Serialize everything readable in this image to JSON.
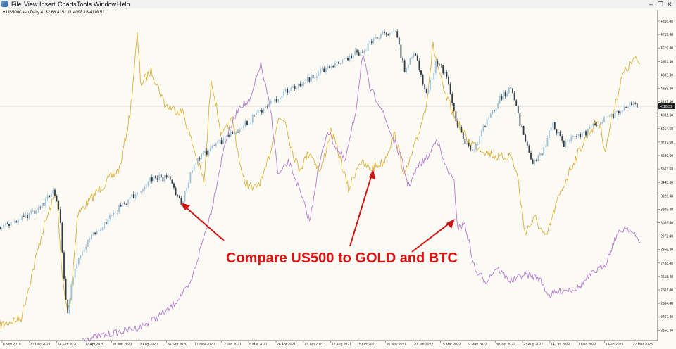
{
  "menubar": {
    "items": [
      "File",
      "View",
      "Insert",
      "Charts",
      "Tools",
      "Window",
      "Help"
    ],
    "minimize": "–",
    "restore": "❐",
    "close": "✕"
  },
  "chart": {
    "symbol_line": "US500Cash,Daily  4132.66 4151.11 4098.16 4118.51",
    "current_price": "4118.51",
    "price_labels": [
      "4856.40",
      "4739.40",
      "4619.40",
      "4502.40",
      "4385.40",
      "4268.40",
      "4151.40",
      "4031.60",
      "3914.60",
      "3797.60",
      "3680.60",
      "3563.60",
      "3443.60",
      "3326.40",
      "3209.40",
      "3089.40",
      "2972.40",
      "2855.40",
      "2738.40",
      "2618.40",
      "2501.40",
      "2384.40",
      "2267.40",
      "2150.40"
    ],
    "time_labels": [
      "6 Nov 2019",
      "31 Dec 2019",
      "24 Feb 2020",
      "17 Apr 2020",
      "10 Jun 2020",
      "3 Aug 2020",
      "24 Sep 2020",
      "17 Nov 2020",
      "12 Jan 2021",
      "5 Mar 2021",
      "28 Apr 2021",
      "21 Jun 2021",
      "12 Aug 2021",
      "5 Oct 2021",
      "26 Nov 2021",
      "20 Jan 2022",
      "15 Mar 2022",
      "9 May 2022",
      "30 Jun 2022",
      "23 Aug 2022",
      "14 Oct 2022",
      "7 Dec 2022",
      "1 Feb 2023",
      "27 Mar 2023"
    ],
    "annotation": "Compare US500 to GOLD and BTC",
    "colors": {
      "background": "#fcfaf5",
      "gold_line": "#e0b23c",
      "btc_line": "#b57bd0",
      "candle_bull": "#9cc3da",
      "candle_bear": "#2f3a44",
      "annotation": "#e01010",
      "arrow": "#d01515"
    },
    "series_names": [
      "US500",
      "GOLD",
      "BTC"
    ]
  }
}
